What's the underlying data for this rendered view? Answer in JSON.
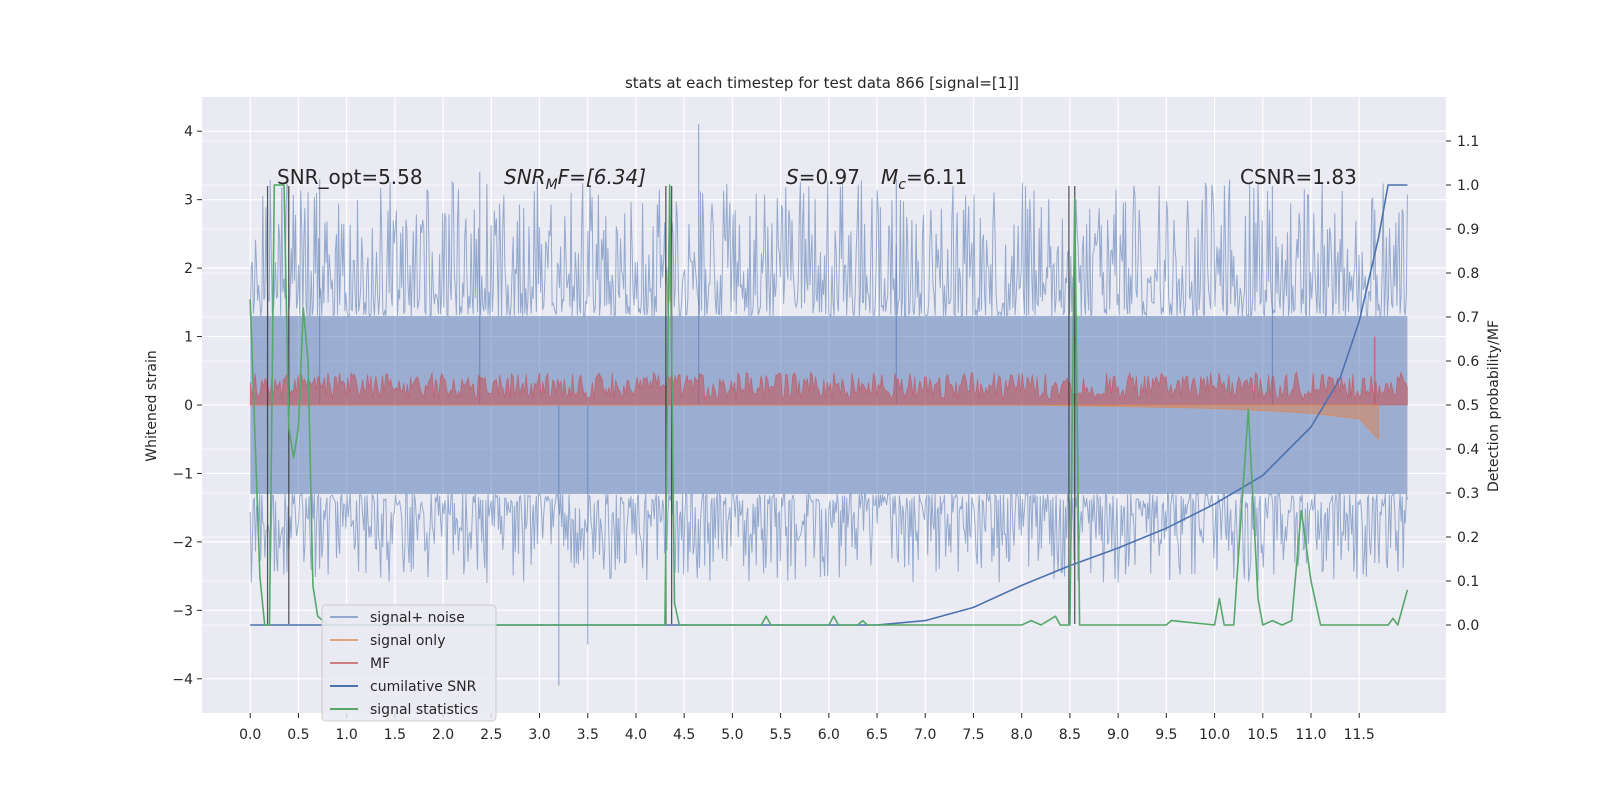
{
  "chart_data": {
    "type": "line",
    "title": "stats at each timestep for test data 866 [signal=[1]]",
    "xlabel": "",
    "ylabel": "Whitened strain",
    "y2label": "Detection probability/MF",
    "xlim": [
      -0.5,
      12.4
    ],
    "ylim": [
      -4.5,
      4.5
    ],
    "y2lim": [
      -0.2,
      1.2
    ],
    "grid": true,
    "x_ticks": [
      "0.0",
      "0.5",
      "1.0",
      "1.5",
      "2.0",
      "2.5",
      "3.0",
      "3.5",
      "4.0",
      "4.5",
      "5.0",
      "5.5",
      "6.0",
      "6.5",
      "7.0",
      "7.5",
      "8.0",
      "8.5",
      "9.0",
      "9.5",
      "10.0",
      "10.5",
      "11.0",
      "11.5"
    ],
    "y_ticks": [
      "4",
      "3",
      "2",
      "1",
      "0",
      "−1",
      "−2",
      "−3",
      "−4"
    ],
    "y2_ticks": [
      "1.1",
      "1.0",
      "0.9",
      "0.8",
      "0.7",
      "0.6",
      "0.5",
      "0.4",
      "0.3",
      "0.2",
      "0.1",
      "0.0"
    ],
    "annotations": {
      "snr_opt": "SNR_opt=5.58",
      "snr_mf_main": "SNR",
      "snr_mf_sub": "M",
      "snr_mf_rest": "F=[6.34]",
      "s_main": "S",
      "s_rest": "=0.97",
      "mc_main": "M",
      "mc_sub": "c",
      "mc_rest": "=6.11",
      "csnr": "CSNR=1.83"
    },
    "legend_placement": "lower-left",
    "series": [
      {
        "name": "signal+ noise",
        "color": "#4c72b0",
        "description": "whitened noisy strain, approx range -2.5 to 3.3 with outliers to 4.1 and -4.1",
        "envelope": {
          "low": -1.3,
          "high": 1.3
        }
      },
      {
        "name": "signal only",
        "color": "#dd8452",
        "description": "whitened signal, near 0 growing chirp toward end",
        "points": [
          [
            0.0,
            0.0
          ],
          [
            8.0,
            0.0
          ],
          [
            9.0,
            -0.02
          ],
          [
            10.0,
            -0.05
          ],
          [
            10.5,
            -0.08
          ],
          [
            11.0,
            -0.12
          ],
          [
            11.5,
            -0.2
          ],
          [
            11.7,
            -0.5
          ]
        ]
      },
      {
        "name": "MF",
        "color": "#c44e52",
        "description": "matched filter output, around 0 to 0.4",
        "envelope": {
          "low": 0.0,
          "high": 0.45
        }
      },
      {
        "name": "cumilative SNR",
        "color": "#4c72b0",
        "axis": "right",
        "points": [
          [
            0.0,
            0.0
          ],
          [
            6.5,
            0.0
          ],
          [
            7.0,
            0.01
          ],
          [
            7.5,
            0.04
          ],
          [
            8.0,
            0.09
          ],
          [
            8.5,
            0.135
          ],
          [
            9.0,
            0.175
          ],
          [
            9.5,
            0.22
          ],
          [
            10.0,
            0.275
          ],
          [
            10.5,
            0.34
          ],
          [
            11.0,
            0.45
          ],
          [
            11.3,
            0.56
          ],
          [
            11.5,
            0.69
          ],
          [
            11.7,
            0.88
          ],
          [
            11.8,
            1.0
          ],
          [
            12.0,
            1.0
          ]
        ]
      },
      {
        "name": "signal statistics",
        "color": "#55a868",
        "axis": "right",
        "points": [
          [
            0.0,
            0.74
          ],
          [
            0.1,
            0.11
          ],
          [
            0.15,
            0.0
          ],
          [
            0.2,
            0.0
          ],
          [
            0.25,
            1.0
          ],
          [
            0.35,
            1.0
          ],
          [
            0.4,
            0.45
          ],
          [
            0.45,
            0.38
          ],
          [
            0.5,
            0.45
          ],
          [
            0.55,
            0.72
          ],
          [
            0.6,
            0.6
          ],
          [
            0.65,
            0.09
          ],
          [
            0.7,
            0.02
          ],
          [
            0.8,
            0.0
          ],
          [
            4.3,
            0.0
          ],
          [
            4.35,
            1.0
          ],
          [
            4.4,
            0.05
          ],
          [
            4.45,
            0.0
          ],
          [
            5.3,
            0.0
          ],
          [
            5.35,
            0.02
          ],
          [
            5.4,
            0.0
          ],
          [
            6.0,
            0.0
          ],
          [
            6.05,
            0.02
          ],
          [
            6.1,
            0.0
          ],
          [
            6.3,
            0.0
          ],
          [
            6.35,
            0.01
          ],
          [
            6.4,
            0.0
          ],
          [
            8.0,
            0.0
          ],
          [
            8.1,
            0.01
          ],
          [
            8.2,
            0.0
          ],
          [
            8.35,
            0.02
          ],
          [
            8.4,
            0.0
          ],
          [
            8.5,
            0.0
          ],
          [
            8.55,
            0.97
          ],
          [
            8.6,
            0.0
          ],
          [
            9.5,
            0.0
          ],
          [
            9.55,
            0.01
          ],
          [
            10.0,
            0.0
          ],
          [
            10.05,
            0.06
          ],
          [
            10.1,
            0.0
          ],
          [
            10.2,
            0.0
          ],
          [
            10.35,
            0.49
          ],
          [
            10.45,
            0.06
          ],
          [
            10.5,
            0.0
          ],
          [
            10.6,
            0.01
          ],
          [
            10.7,
            0.0
          ],
          [
            10.8,
            0.01
          ],
          [
            10.9,
            0.26
          ],
          [
            11.0,
            0.1
          ],
          [
            11.1,
            0.0
          ],
          [
            11.8,
            0.0
          ],
          [
            11.85,
            0.015
          ],
          [
            11.9,
            0.0
          ],
          [
            12.0,
            0.08
          ]
        ]
      }
    ],
    "vertical_lines": [
      {
        "x": 0.18,
        "axis_range": [
          -3.2,
          3.2
        ]
      },
      {
        "x": 0.4,
        "axis_range": [
          -3.2,
          3.2
        ]
      },
      {
        "x": 4.31,
        "axis_range": [
          -3.2,
          3.2
        ]
      },
      {
        "x": 4.37,
        "axis_range": [
          -3.2,
          3.2
        ]
      },
      {
        "x": 8.49,
        "axis_range": [
          -3.2,
          3.2
        ]
      },
      {
        "x": 8.55,
        "axis_range": [
          -3.2,
          3.2
        ]
      }
    ]
  },
  "colors": {
    "background": "#eaeaf2",
    "grid": "#ffffff",
    "noise": "#4c72b0",
    "signal": "#dd8452",
    "mf": "#c44e52",
    "csnr": "#4c72b0",
    "stats": "#55a868"
  }
}
